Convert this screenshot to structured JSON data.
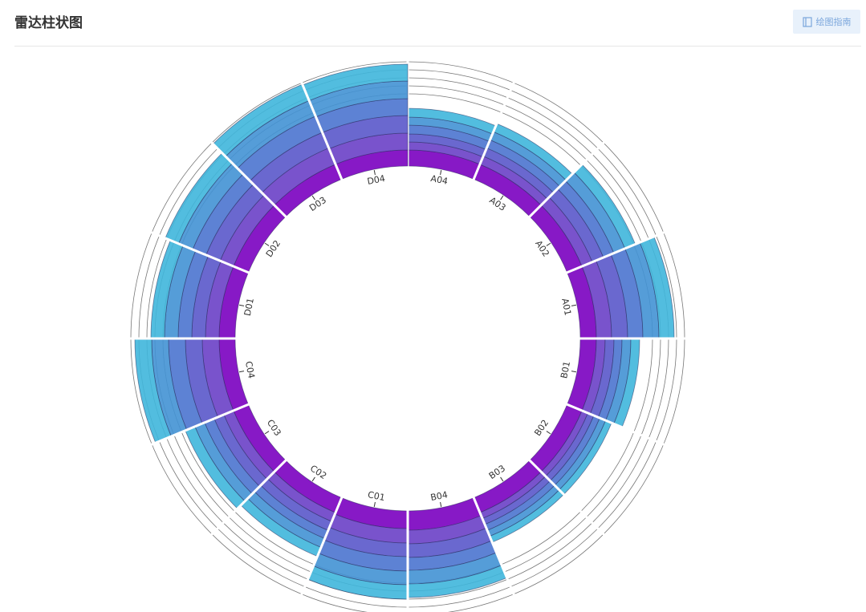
{
  "page_title": "雷达柱状图",
  "button": "绘图指南",
  "chart_data": {
    "type": "radial-stacked-bar",
    "categories": [
      "A04",
      "A03",
      "A02",
      "A01",
      "B01",
      "B02",
      "B03",
      "B04",
      "C01",
      "C02",
      "C03",
      "C04",
      "D01",
      "D02",
      "D03",
      "D04"
    ],
    "series": [
      {
        "color": "#7a00c0",
        "values": [
          20,
          20,
          20,
          20,
          20,
          20,
          20,
          24,
          22,
          20,
          20,
          20,
          20,
          20,
          20,
          20
        ]
      },
      {
        "color": "#6a40c6",
        "values": [
          10,
          11,
          14,
          19,
          11,
          8,
          8,
          17,
          18,
          12,
          13,
          21,
          17,
          18,
          22,
          21
        ]
      },
      {
        "color": "#5a58ca",
        "values": [
          10,
          11,
          15,
          20,
          11,
          8,
          8,
          17,
          17,
          12,
          13,
          21,
          17,
          19,
          21,
          22
        ]
      },
      {
        "color": "#4b74cf",
        "values": [
          11,
          11,
          14,
          19,
          10,
          8,
          8,
          16,
          18,
          11,
          13,
          21,
          17,
          18,
          22,
          21
        ]
      },
      {
        "color": "#4392d4",
        "values": [
          10,
          11,
          15,
          20,
          11,
          8,
          8,
          17,
          17,
          12,
          13,
          21,
          17,
          19,
          21,
          22
        ]
      },
      {
        "color": "#3fb6db",
        "values": [
          11,
          11,
          14,
          19,
          11,
          8,
          8,
          17,
          18,
          12,
          13,
          21,
          17,
          18,
          22,
          21
        ]
      }
    ],
    "ylim": [
      0,
      130
    ],
    "yticks": [
      90,
      100,
      110,
      120,
      130
    ],
    "grid": true
  }
}
